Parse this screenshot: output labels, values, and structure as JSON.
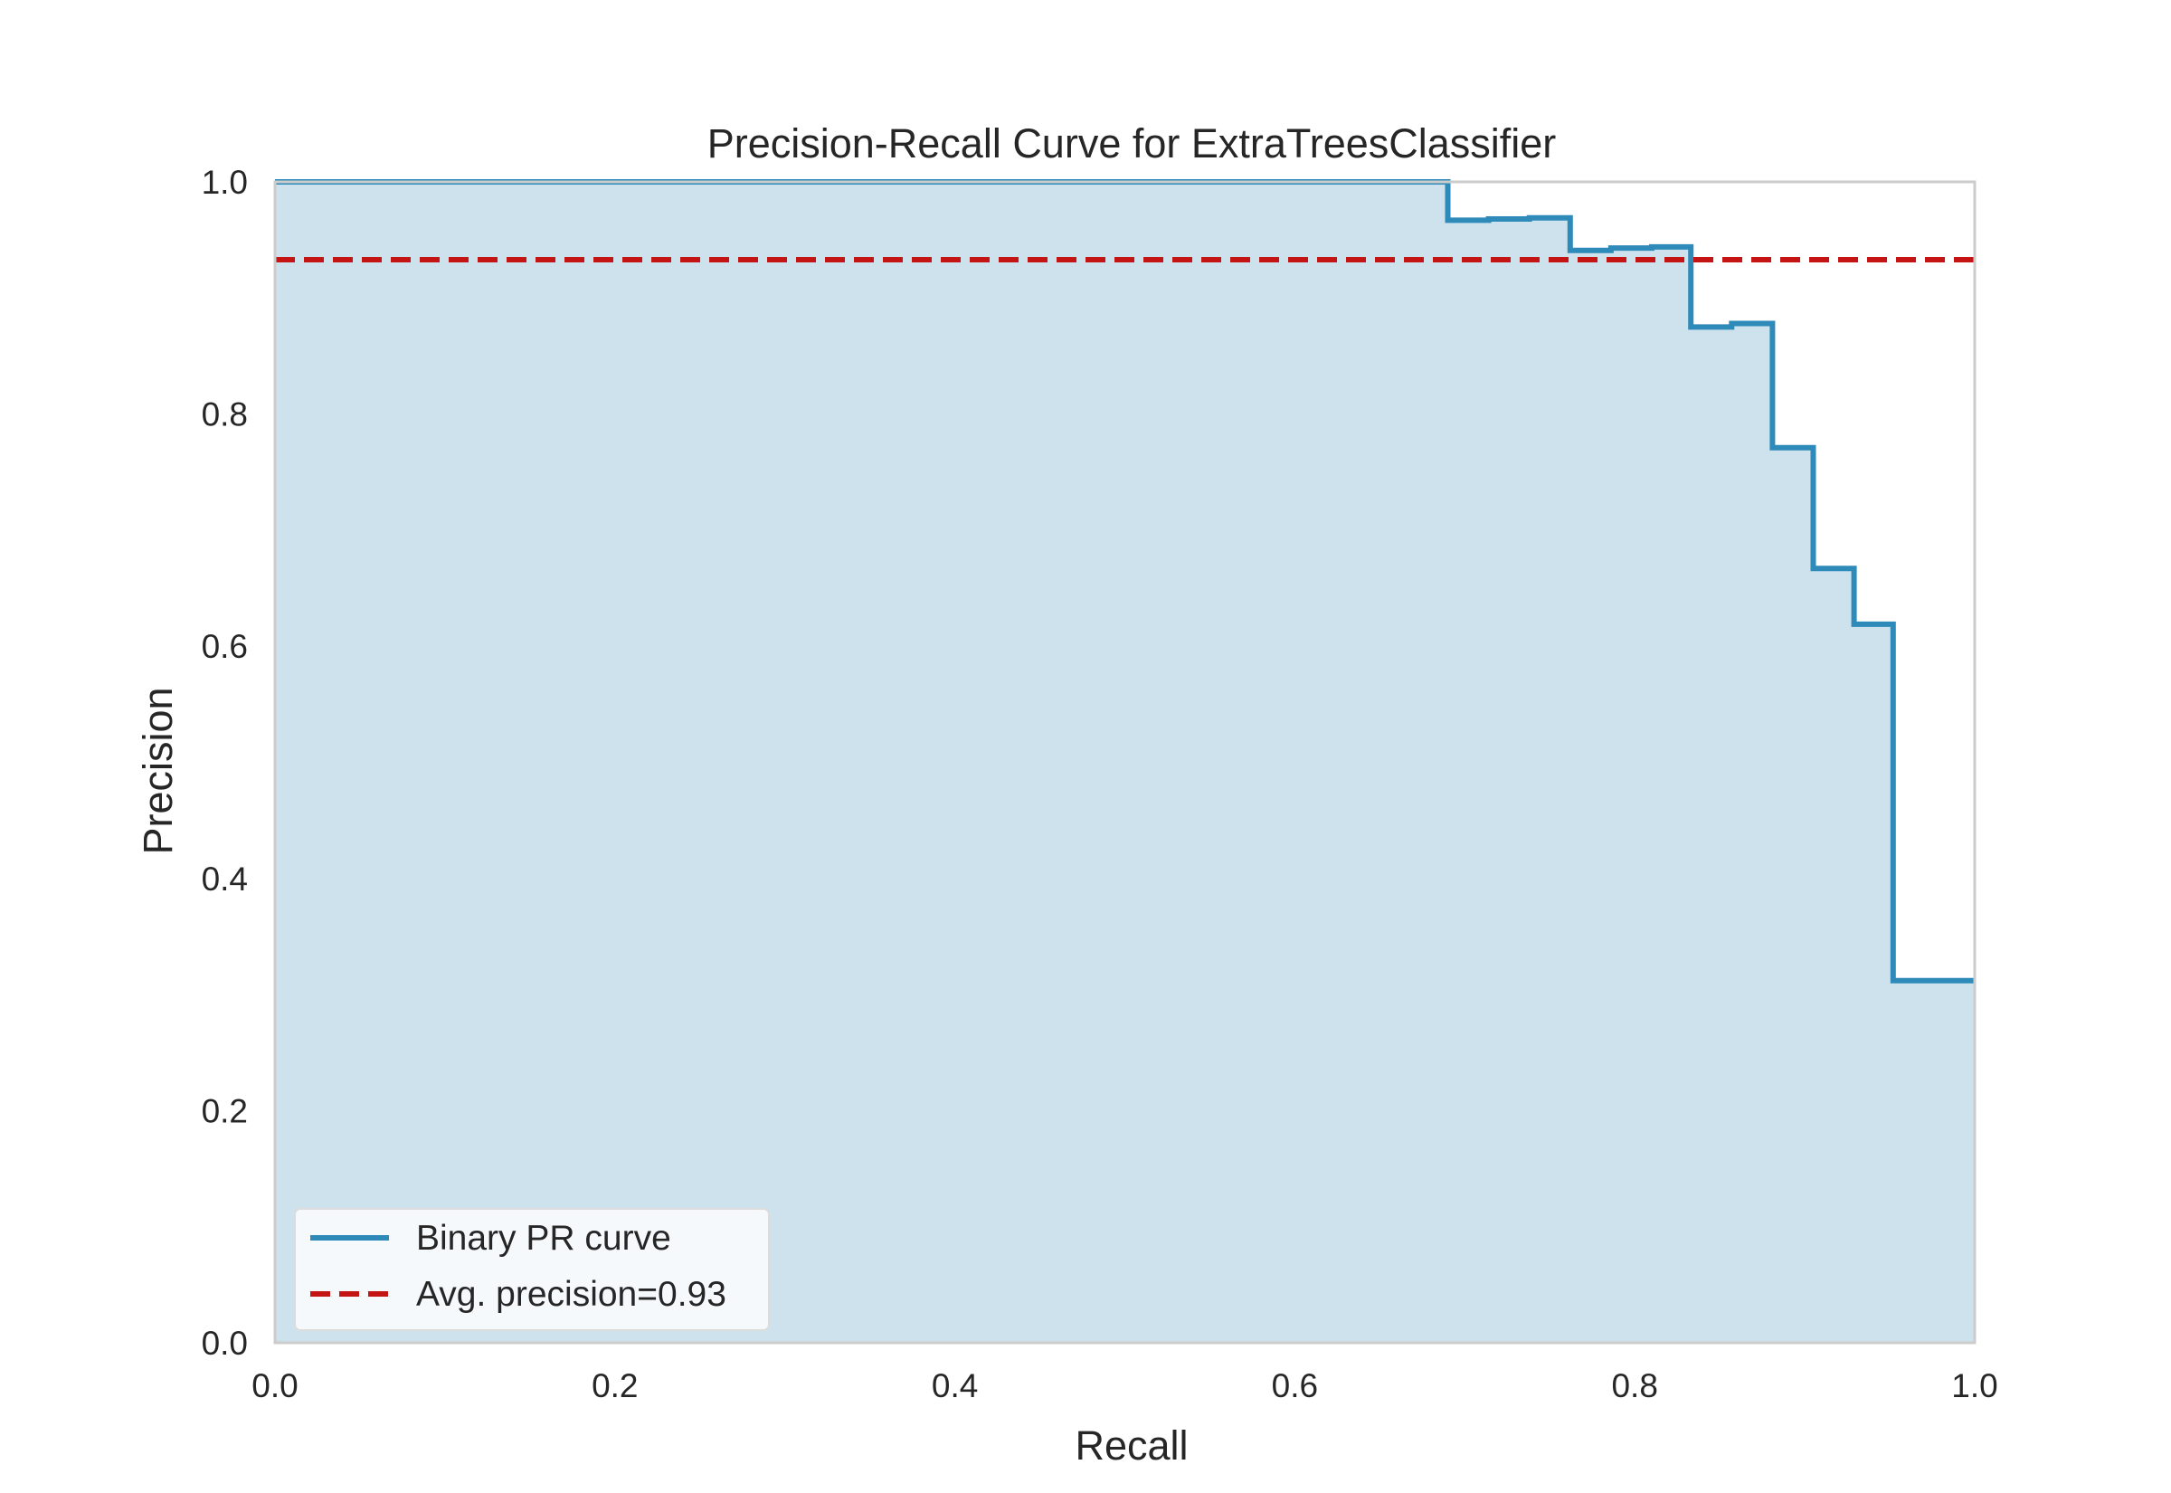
{
  "chart_data": {
    "type": "line",
    "title": "Precision-Recall Curve for ExtraTreesClassifier",
    "xlabel": "Recall",
    "ylabel": "Precision",
    "xlim": [
      0.0,
      1.0
    ],
    "ylim": [
      0.0,
      1.0
    ],
    "xticks": [
      "0.0",
      "0.2",
      "0.4",
      "0.6",
      "0.8",
      "1.0"
    ],
    "yticks": [
      "0.0",
      "0.2",
      "0.4",
      "0.6",
      "0.8",
      "1.0"
    ],
    "grid": false,
    "legend_position": "lower left",
    "series": [
      {
        "name": "Binary PR curve",
        "style": "step",
        "fill": true,
        "color": "#2e8ab8",
        "fill_color": "#cde2ed",
        "recall": [
          0.0,
          0.69,
          0.69,
          0.714,
          0.738,
          0.762,
          0.786,
          0.81,
          0.833,
          0.857,
          0.881,
          0.905,
          0.929,
          0.952,
          1.0
        ],
        "precision": [
          1.0,
          1.0,
          0.967,
          0.968,
          0.969,
          0.941,
          0.943,
          0.944,
          0.875,
          0.878,
          0.771,
          0.667,
          0.619,
          0.312,
          0.312
        ]
      },
      {
        "name": "Avg. precision=0.93",
        "style": "dashed",
        "color": "#c41414",
        "value": 0.933
      }
    ]
  }
}
